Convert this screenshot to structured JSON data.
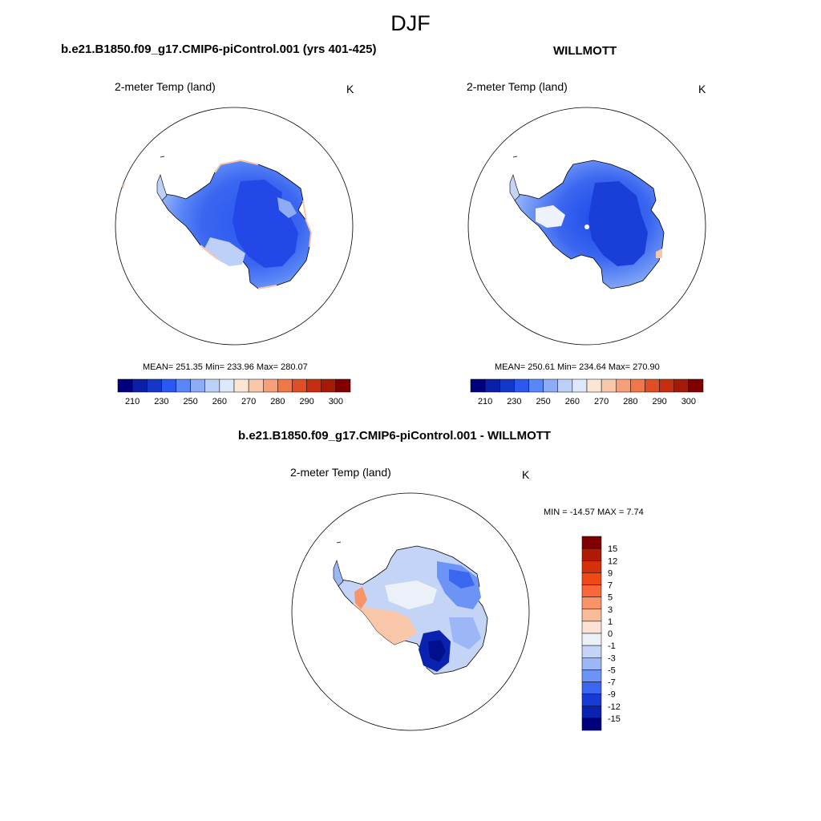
{
  "page": {
    "title": "DJF"
  },
  "chart_data": [
    {
      "type": "heatmap",
      "title": "b.e21.B1850.f09_g17.CMIP6-piControl.001 (yrs 401-425)",
      "subtitle_left": "2-meter Temp (land)",
      "units": "K",
      "stats": "MEAN= 251.35  Min= 233.96  Max= 280.07",
      "colorbar": {
        "ticks": [
          "210",
          "230",
          "250",
          "260",
          "270",
          "280",
          "290",
          "300"
        ],
        "levels": 16
      }
    },
    {
      "type": "heatmap",
      "title": "WILLMOTT",
      "subtitle_left": "2-meter Temp (land)",
      "units": "K",
      "stats": "MEAN= 250.61  Min= 234.64  Max= 270.90",
      "colorbar": {
        "ticks": [
          "210",
          "230",
          "250",
          "260",
          "270",
          "280",
          "290",
          "300"
        ],
        "levels": 16
      }
    },
    {
      "type": "heatmap",
      "title": "b.e21.B1850.f09_g17.CMIP6-piControl.001 - WILLMOTT",
      "subtitle_left": "2-meter Temp (land)",
      "units": "K",
      "stats": "MIN = -14.57 MAX =   7.74",
      "colorbar": {
        "ticks": [
          "15",
          "12",
          "9",
          "7",
          "5",
          "3",
          "1",
          "0",
          "-1",
          "-3",
          "-5",
          "-7",
          "-9",
          "-12",
          "-15"
        ]
      }
    }
  ],
  "palette": {
    "hbar": [
      "#00007f",
      "#0a1fa8",
      "#1437c8",
      "#2a58f0",
      "#5a86f8",
      "#8eabf6",
      "#bdd0f8",
      "#dde8fa",
      "#fbe6d6",
      "#f8c7aa",
      "#f5a07a",
      "#f07848",
      "#e04e25",
      "#c52e10",
      "#a51a06",
      "#800000"
    ],
    "vbar": [
      "#800000",
      "#b01a04",
      "#d4300a",
      "#f04a14",
      "#f8683a",
      "#f89468",
      "#f8bc98",
      "#fbe2d4",
      "#ebf0f9",
      "#c4d4f6",
      "#9cb6f6",
      "#6c94f6",
      "#3a66f0",
      "#1a3ad6",
      "#0a22b0",
      "#00007f"
    ]
  }
}
